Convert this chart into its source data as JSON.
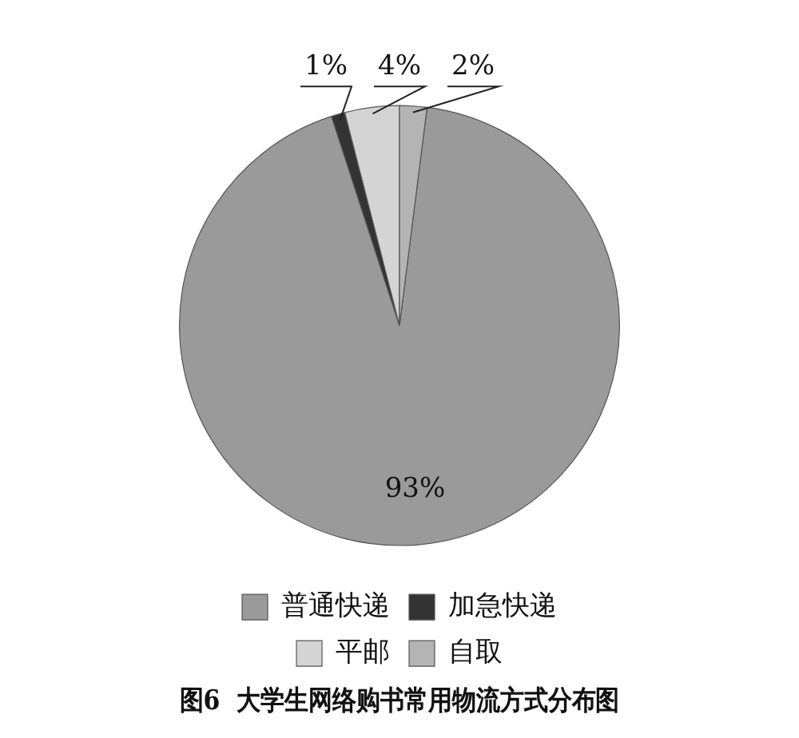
{
  "chart_data": {
    "type": "pie",
    "title": "图6  大学生网络购书常用物流方式分布图",
    "categories": [
      "普通快递",
      "加急快递",
      "平邮",
      "自取"
    ],
    "values": [
      93,
      1,
      4,
      2
    ],
    "colors": [
      "#9a9a9a",
      "#333333",
      "#d4d4d4",
      "#b4b4b4"
    ],
    "value_labels": [
      "93%",
      "1%",
      "4%",
      "2%"
    ],
    "legend": "bottom"
  }
}
